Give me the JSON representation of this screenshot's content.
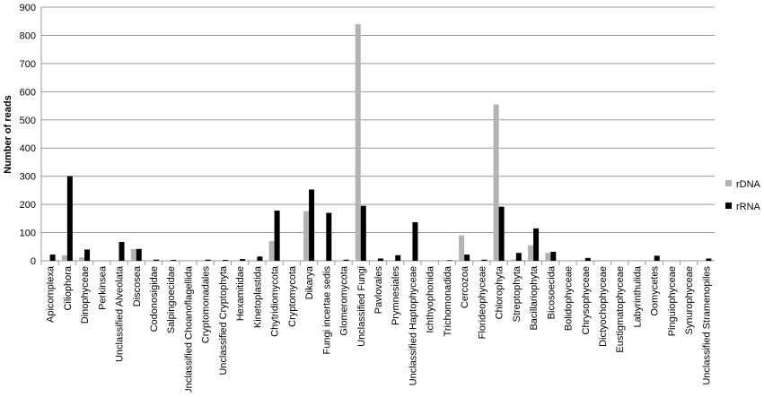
{
  "chart_data": {
    "type": "bar",
    "y_label": "Number of reads",
    "categories": [
      "Apicomplexa",
      "Ciliophora",
      "Dinophyceae",
      "Perkinsea",
      "Unclassified Alveolata",
      "Discosea",
      "Codonosigidae",
      "Salpingoecidae",
      "Unclassified Choanoflagellida",
      "Cryptomonadales",
      "Unclassified Cryptophyta",
      "Hexamitidae",
      "Kinetoplastida",
      "Chytridiomycota",
      "Cryptomycota",
      "Dikarya",
      "Fungi incertae sedis",
      "Glomeromycota",
      "Unclassified Fungi",
      "Pavlovales",
      "Prymnesiales",
      "Unclassified Haptophyceae",
      "Ichthyophonida",
      "Trichomonadida",
      "Cercozoa",
      "Florideophyceae",
      "Chlorophyta",
      "Streptophyta",
      "Bacillariophyta",
      "Bicosoecida",
      "Bolidophyceae",
      "Chrysophyceae",
      "Dictyochophyceae",
      "Eustigmatophyceae",
      "Labyrinthulida",
      "Oomycetes",
      "Pinguiophyceae",
      "Synurophyceae",
      "Unclassified Stramenopiles"
    ],
    "series": [
      {
        "name": "rDNA",
        "color": "#b3b3b3",
        "values": [
          2,
          20,
          12,
          2,
          2,
          42,
          0,
          2,
          0,
          0,
          2,
          0,
          2,
          70,
          0,
          176,
          0,
          0,
          840,
          0,
          2,
          0,
          2,
          2,
          90,
          0,
          555,
          5,
          55,
          28,
          0,
          3,
          0,
          0,
          2,
          0,
          0,
          2,
          2
        ]
      },
      {
        "name": "rRNA",
        "color": "#000000",
        "values": [
          22,
          300,
          40,
          0,
          67,
          42,
          4,
          3,
          0,
          4,
          3,
          6,
          15,
          178,
          0,
          253,
          170,
          4,
          195,
          8,
          20,
          137,
          0,
          2,
          22,
          4,
          192,
          28,
          115,
          32,
          0,
          10,
          0,
          0,
          0,
          18,
          0,
          0,
          8
        ]
      }
    ],
    "ylim": [
      0,
      900
    ],
    "yticks": [
      0,
      100,
      200,
      300,
      400,
      500,
      600,
      700,
      800,
      900
    ],
    "grid": true
  }
}
